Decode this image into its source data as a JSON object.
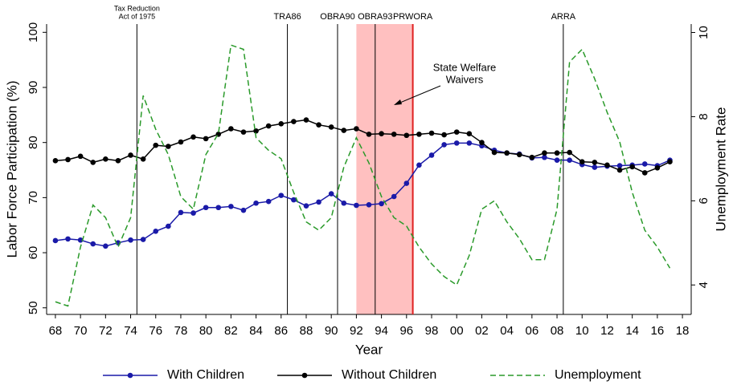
{
  "chart_data": {
    "type": "line",
    "xlabel": "Year",
    "ylabel": "Labor Force Participation (%)",
    "y2label": "Unemployment Rate",
    "x": [
      1968,
      1969,
      1970,
      1971,
      1972,
      1973,
      1974,
      1975,
      1976,
      1977,
      1978,
      1979,
      1980,
      1981,
      1982,
      1983,
      1984,
      1985,
      1986,
      1987,
      1988,
      1989,
      1990,
      1991,
      1992,
      1993,
      1994,
      1995,
      1996,
      1997,
      1998,
      1999,
      2000,
      2001,
      2002,
      2003,
      2004,
      2005,
      2006,
      2007,
      2008,
      2009,
      2010,
      2011,
      2012,
      2013,
      2014,
      2015,
      2016,
      2017
    ],
    "xlim": [
      1967.3,
      2018.7
    ],
    "xticks": [
      {
        "value": 1968,
        "label": "68"
      },
      {
        "value": 1970,
        "label": "70"
      },
      {
        "value": 1972,
        "label": "72"
      },
      {
        "value": 1974,
        "label": "74"
      },
      {
        "value": 1976,
        "label": "76"
      },
      {
        "value": 1978,
        "label": "78"
      },
      {
        "value": 1980,
        "label": "80"
      },
      {
        "value": 1982,
        "label": "82"
      },
      {
        "value": 1984,
        "label": "84"
      },
      {
        "value": 1986,
        "label": "86"
      },
      {
        "value": 1988,
        "label": "88"
      },
      {
        "value": 1990,
        "label": "90"
      },
      {
        "value": 1992,
        "label": "92"
      },
      {
        "value": 1994,
        "label": "94"
      },
      {
        "value": 1996,
        "label": "96"
      },
      {
        "value": 1998,
        "label": "98"
      },
      {
        "value": 2000,
        "label": "00"
      },
      {
        "value": 2002,
        "label": "02"
      },
      {
        "value": 2004,
        "label": "04"
      },
      {
        "value": 2006,
        "label": "06"
      },
      {
        "value": 2008,
        "label": "08"
      },
      {
        "value": 2010,
        "label": "10"
      },
      {
        "value": 2012,
        "label": "12"
      },
      {
        "value": 2014,
        "label": "14"
      },
      {
        "value": 2016,
        "label": "16"
      },
      {
        "value": 2018,
        "label": "18"
      }
    ],
    "ylim": [
      48.8,
      101.5
    ],
    "yticks": [
      50,
      60,
      70,
      80,
      90,
      100
    ],
    "y2lim": [
      3.3,
      10.2
    ],
    "y2ticks": [
      4,
      6,
      8,
      10
    ],
    "series": [
      {
        "name": "With Children",
        "color": "#1a1aa8",
        "marker": "circle",
        "linestyle": "solid",
        "values": [
          62.2,
          62.5,
          62.3,
          61.6,
          61.2,
          61.8,
          62.3,
          62.4,
          63.9,
          64.8,
          67.3,
          67.2,
          68.2,
          68.2,
          68.4,
          67.7,
          69.0,
          69.3,
          70.4,
          69.6,
          68.5,
          69.2,
          70.7,
          69.0,
          68.6,
          68.7,
          68.9,
          70.2,
          72.6,
          75.9,
          77.7,
          79.6,
          79.9,
          79.9,
          79.4,
          78.6,
          78.1,
          77.9,
          77.2,
          77.3,
          76.8,
          76.8,
          76.0,
          75.5,
          75.7,
          75.8,
          75.9,
          76.1,
          75.8,
          76.8
        ]
      },
      {
        "name": "Without Children",
        "color": "#000000",
        "marker": "circle",
        "linestyle": "solid",
        "values": [
          76.7,
          76.9,
          77.5,
          76.4,
          77.0,
          76.7,
          77.7,
          77.0,
          79.5,
          79.3,
          80.1,
          81.0,
          80.7,
          81.5,
          82.5,
          81.9,
          82.1,
          83.0,
          83.4,
          83.8,
          84.1,
          83.2,
          82.8,
          82.2,
          82.5,
          81.5,
          81.6,
          81.5,
          81.3,
          81.5,
          81.7,
          81.4,
          81.9,
          81.6,
          80.0,
          78.2,
          78.1,
          77.8,
          77.3,
          78.1,
          78.1,
          78.2,
          76.5,
          76.4,
          75.9,
          75.0,
          75.6,
          74.5,
          75.4,
          76.5
        ]
      },
      {
        "name": "Unemployment",
        "color": "#2a9a2a",
        "marker": "none",
        "linestyle": "dashed",
        "axis": "y2",
        "values": [
          3.6,
          3.5,
          4.9,
          5.9,
          5.6,
          4.9,
          5.6,
          8.5,
          7.7,
          7.1,
          6.1,
          5.8,
          7.1,
          7.6,
          9.7,
          9.6,
          7.5,
          7.2,
          7.0,
          6.2,
          5.5,
          5.3,
          5.6,
          6.8,
          7.5,
          6.9,
          6.1,
          5.6,
          5.4,
          4.9,
          4.5,
          4.2,
          4.0,
          4.7,
          5.8,
          6.0,
          5.5,
          5.1,
          4.6,
          4.6,
          5.8,
          9.3,
          9.6,
          8.9,
          8.1,
          7.4,
          6.2,
          5.3,
          4.9,
          4.4
        ]
      }
    ],
    "events": [
      {
        "lines": [
          "Tax Reduction",
          "Act of 1975"
        ],
        "x": 1974.5,
        "color": "#000000"
      },
      {
        "lines": [
          "TRA86"
        ],
        "x": 1986.5,
        "color": "#000000"
      },
      {
        "lines": [
          "OBRA90"
        ],
        "x": 1990.5,
        "color": "#000000"
      },
      {
        "lines": [
          "OBRA93"
        ],
        "x": 1993.5,
        "color": "#000000"
      },
      {
        "lines": [
          "PRWORA"
        ],
        "x": 1996.5,
        "color": "#e02020"
      },
      {
        "lines": [
          "ARRA"
        ],
        "x": 2008.5,
        "color": "#000000"
      }
    ],
    "shade": {
      "lines": [
        "State Welfare",
        "Waivers"
      ],
      "x0": 1992,
      "x1": 1996.5,
      "color": "#ffc0c0"
    },
    "legend": "bottom"
  }
}
